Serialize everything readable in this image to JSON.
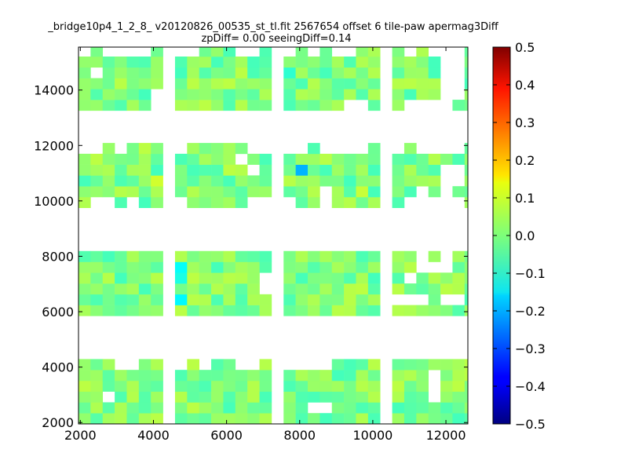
{
  "title_line1": "_bridge10p4_1_2_8_ v20120826_00535_st_tl.fit 2567654 offset 6 tile-paw apermag3Diff",
  "title_line2": "zpDiff= 0.00 seeingDiff=0.14",
  "chart_data": {
    "type": "heatmap",
    "title": "_bridge10p4_1_2_8_ v20120826_00535_st_tl.fit 2567654 offset 6 tile-paw apermag3Diff",
    "subtitle": "zpDiff= 0.00 seeingDiff=0.14",
    "xlabel": "",
    "ylabel": "",
    "xlim": [
      1950,
      12600
    ],
    "ylim": [
      1950,
      15550
    ],
    "x_ticks": [
      2000,
      4000,
      6000,
      8000,
      10000,
      12000
    ],
    "x_tick_labels": [
      "2000",
      "4000",
      "6000",
      "8000",
      "10000",
      "12000"
    ],
    "y_ticks": [
      2000,
      4000,
      6000,
      8000,
      10000,
      12000,
      14000
    ],
    "y_tick_labels": [
      "2000",
      "4000",
      "6000",
      "8000",
      "10000",
      "12000",
      "14000"
    ],
    "colorbar": {
      "colormap": "jet",
      "range": [
        -0.5,
        0.5
      ],
      "ticks": [
        0.5,
        0.4,
        0.3,
        0.2,
        0.1,
        0.0,
        -0.1,
        -0.2,
        -0.3,
        -0.4,
        -0.5
      ],
      "tick_labels": [
        "0.5",
        "0.4",
        "0.3",
        "0.2",
        "0.1",
        "0.0",
        "−0.1",
        "−0.2",
        "−0.3",
        "−0.4",
        "−0.5"
      ]
    },
    "grid": false,
    "cell_size": [
      330,
      390
    ],
    "grid_origin": [
      1950,
      1950
    ],
    "tile_columns": [
      {
        "x_start": 1950,
        "cols": 7
      },
      {
        "x_start": 4590,
        "cols": 8
      },
      {
        "x_start": 7560,
        "cols": 8
      },
      {
        "x_start": 10530,
        "cols": 7
      }
    ],
    "tile_rows": [
      {
        "y_start": 1950,
        "rows": 6
      },
      {
        "y_start": 5850,
        "rows": 6
      },
      {
        "y_start": 9750,
        "rows": 6
      },
      {
        "y_start": 13260,
        "rows": 6
      }
    ],
    "missing_cells": [
      [
        2610,
        2730
      ],
      [
        8220,
        2340
      ],
      [
        8550,
        2340
      ],
      [
        11520,
        2730
      ],
      [
        11520,
        3120
      ],
      [
        11520,
        3510
      ],
      [
        4590,
        3900
      ],
      [
        5250,
        3900
      ],
      [
        6240,
        3900
      ],
      [
        6570,
        3900
      ],
      [
        2940,
        3900
      ],
      [
        3270,
        3900
      ],
      [
        7560,
        3900
      ],
      [
        7890,
        3900
      ],
      [
        8220,
        3900
      ],
      [
        8550,
        3900
      ],
      [
        10530,
        6240
      ],
      [
        10860,
        6240
      ],
      [
        11190,
        6240
      ],
      [
        11850,
        6240
      ],
      [
        12180,
        6240
      ],
      [
        6900,
        6630
      ],
      [
        6900,
        7020
      ],
      [
        10860,
        7020
      ],
      [
        11190,
        7410
      ],
      [
        11520,
        7410
      ],
      [
        11850,
        7410
      ],
      [
        11850,
        7800
      ],
      [
        11190,
        7800
      ],
      [
        10860,
        9750
      ],
      [
        11190,
        9750
      ],
      [
        11520,
        9750
      ],
      [
        11850,
        9750
      ],
      [
        12180,
        9750
      ],
      [
        2280,
        9750
      ],
      [
        2610,
        9750
      ],
      [
        3270,
        9750
      ],
      [
        4590,
        9750
      ],
      [
        6570,
        9750
      ],
      [
        6900,
        9750
      ],
      [
        7560,
        9750
      ],
      [
        8550,
        9750
      ],
      [
        11190,
        10140
      ],
      [
        11850,
        10140
      ],
      [
        11850,
        10530
      ],
      [
        12180,
        10530
      ],
      [
        11850,
        10920
      ],
      [
        12180,
        10920
      ],
      [
        8550,
        10140
      ],
      [
        6570,
        10920
      ],
      [
        6240,
        11310
      ],
      [
        7560,
        11700
      ],
      [
        7890,
        11700
      ],
      [
        8550,
        11700
      ],
      [
        8880,
        11700
      ],
      [
        9210,
        11700
      ],
      [
        9540,
        11700
      ],
      [
        1950,
        11700
      ],
      [
        2280,
        11700
      ],
      [
        2940,
        11700
      ],
      [
        11850,
        11700
      ],
      [
        12180,
        11700
      ],
      [
        10530,
        11700
      ],
      [
        11190,
        11700
      ],
      [
        11520,
        11700
      ],
      [
        4590,
        11700
      ],
      [
        6570,
        11700
      ],
      [
        6900,
        11700
      ],
      [
        2280,
        14430
      ],
      [
        3930,
        13260
      ],
      [
        3930,
        13650
      ],
      [
        6570,
        15210
      ],
      [
        6240,
        15210
      ],
      [
        4590,
        15210
      ],
      [
        4920,
        15210
      ],
      [
        1950,
        15210
      ],
      [
        2610,
        15210
      ],
      [
        2940,
        15210
      ],
      [
        3270,
        15210
      ],
      [
        3600,
        15210
      ],
      [
        9210,
        13260
      ],
      [
        9540,
        13260
      ],
      [
        7560,
        15210
      ],
      [
        8220,
        15210
      ],
      [
        8880,
        15210
      ],
      [
        9210,
        15210
      ],
      [
        10860,
        13260
      ],
      [
        11190,
        13260
      ],
      [
        11520,
        13260
      ],
      [
        11850,
        13260
      ],
      [
        11850,
        13650
      ],
      [
        11850,
        14040
      ],
      [
        11850,
        14430
      ],
      [
        11850,
        14820
      ],
      [
        11850,
        15210
      ],
      [
        12180,
        13650
      ],
      [
        12180,
        14040
      ],
      [
        12180,
        14430
      ],
      [
        12180,
        14820
      ],
      [
        12180,
        15210
      ],
      [
        11520,
        15210
      ],
      [
        10860,
        15210
      ]
    ],
    "outlier_cells": [
      {
        "x": 8055,
        "y": 11115,
        "value": -0.2
      },
      {
        "x": 4755,
        "y": 7605,
        "value": -0.12
      },
      {
        "x": 4755,
        "y": 7215,
        "value": -0.1
      },
      {
        "x": 4755,
        "y": 6435,
        "value": -0.13
      },
      {
        "x": 7725,
        "y": 14625,
        "value": -0.08
      },
      {
        "x": 9705,
        "y": 10335,
        "value": 0.07
      },
      {
        "x": 4095,
        "y": 10725,
        "value": 0.08
      },
      {
        "x": 9705,
        "y": 6825,
        "value": 0.06
      },
      {
        "x": 5415,
        "y": 3315,
        "value": -0.05
      },
      {
        "x": 11355,
        "y": 6435,
        "value": -0.06
      }
    ],
    "value_range_typical": [
      -0.06,
      0.06
    ]
  }
}
